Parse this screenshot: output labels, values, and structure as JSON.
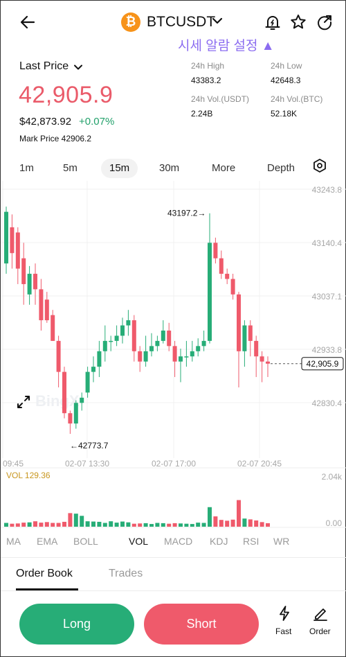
{
  "header": {
    "pair": "BTCUSDT",
    "coin_symbol": "₿",
    "alert_text": "시세 알람 설정 ▲",
    "icons": [
      "back-arrow-icon",
      "chevron-down-icon",
      "price-alert-bell-icon",
      "star-icon",
      "share-icon"
    ]
  },
  "price": {
    "last_price_label": "Last Price",
    "value": "42,905.9",
    "usd_value": "$42,873.92",
    "change": "+0.07%",
    "mark_price": "Mark Price 42906.2"
  },
  "stats": {
    "high_label": "24h High",
    "high_value": "43383.2",
    "low_label": "24h Low",
    "low_value": "42648.3",
    "vol_usdt_label": "24h Vol.(USDT)",
    "vol_usdt_value": "2.24B",
    "vol_btc_label": "24h Vol.(BTC)",
    "vol_btc_value": "52.18K"
  },
  "timeframes": {
    "t1": "1m",
    "t5": "5m",
    "t15": "15m",
    "t30": "30m",
    "more": "More",
    "depth": "Depth"
  },
  "chart": {
    "price_ticks": [
      "43243.8",
      "43140.4",
      "43037.1",
      "42933.8",
      "42830.4"
    ],
    "time_labels": [
      "09:45",
      "02-07 13:30",
      "02-07 17:00",
      "02-07 20:45"
    ],
    "current_price": "42,905.9",
    "high_marker": "43197.2",
    "low_marker": "42773.7",
    "vol_label": "VOL 129.36",
    "vol_ticks": [
      "2.04k",
      "0.00"
    ],
    "watermark": "BingX",
    "colors": {
      "up": "#27ad77",
      "down": "#ef5a6b"
    }
  },
  "indicators": {
    "ma": "MA",
    "ema": "EMA",
    "boll": "BOLL",
    "vol": "VOL",
    "macd": "MACD",
    "kdj": "KDJ",
    "rsi": "RSI",
    "wr": "WR"
  },
  "tabs": {
    "order_book": "Order Book",
    "trades": "Trades"
  },
  "actions": {
    "long": "Long",
    "short": "Short",
    "fast": "Fast",
    "order": "Order"
  }
}
